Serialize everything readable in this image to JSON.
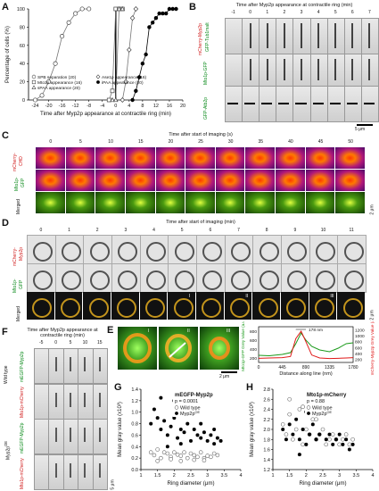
{
  "panel_labels": {
    "a": "A",
    "b": "B",
    "c": "C",
    "d": "D",
    "e": "E",
    "f": "F",
    "g": "G",
    "h": "H"
  },
  "panelA": {
    "chart_data": {
      "type": "line",
      "xlabel": "Time after Myp2p appearance at contractile ring (min)",
      "ylabel": "Percentage of cells (%)",
      "xlim": [
        -26,
        20
      ],
      "ylim": [
        0,
        100
      ],
      "xticks": [
        -24,
        -20,
        -16,
        -12,
        -8,
        -4,
        0,
        4,
        8,
        12,
        16,
        20
      ],
      "yticks": [
        0,
        20,
        40,
        60,
        80,
        100
      ],
      "series": [
        {
          "name": "SPB separation (20)",
          "marker": "open-circle",
          "x": [
            -24,
            -22,
            -20,
            -18,
            -16,
            -14,
            -12,
            -10,
            -8
          ],
          "y": [
            0,
            5,
            20,
            40,
            70,
            85,
            95,
            100,
            100
          ]
        },
        {
          "name": "Mto1p appearance (16)",
          "marker": "open-square",
          "x": [
            -2,
            -1,
            0,
            1,
            2
          ],
          "y": [
            0,
            10,
            100,
            100,
            100
          ]
        },
        {
          "name": "sPAA appearance (20)",
          "marker": "open-triangle",
          "x": [
            -1,
            0,
            1,
            2
          ],
          "y": [
            0,
            0,
            100,
            100
          ]
        },
        {
          "name": "Ase1p appearance (16)",
          "marker": "open-diamond",
          "x": [
            2,
            3,
            4,
            5,
            6
          ],
          "y": [
            0,
            20,
            55,
            90,
            100
          ]
        },
        {
          "name": "iPAA appearance (20)",
          "marker": "filled-circle",
          "x": [
            5,
            6,
            7,
            8,
            9,
            10,
            11,
            12,
            13,
            14,
            15,
            16,
            17,
            18
          ],
          "y": [
            0,
            10,
            25,
            40,
            50,
            80,
            85,
            90,
            95,
            95,
            95,
            100,
            100,
            100
          ]
        }
      ]
    }
  },
  "panelB": {
    "top_label": "Time after Myp2p appearance at contractile ring (min)",
    "times": [
      "-1",
      "0",
      "1",
      "2",
      "3",
      "4",
      "5",
      "6",
      "7"
    ],
    "rows": [
      "mCherry-Myp2p GFP-Tubulin",
      "Mto1p-GFP",
      "GFP-Atb2p"
    ],
    "row_labels_short": [
      "mCherry-\nMyp2p\nGFP-\nTub1malt",
      "Mto1p-\nGFP",
      "GFP-\nAtb2p"
    ],
    "scale": "5 μm"
  },
  "panelC": {
    "top_label": "Time after start of imaging (s)",
    "times": [
      "0",
      "5",
      "10",
      "15",
      "20",
      "25",
      "30",
      "35",
      "40",
      "45",
      "50"
    ],
    "rows": [
      "mCherry-CHD",
      "Mto1p-GFP",
      "Merged"
    ],
    "scale": "2 μm"
  },
  "panelD": {
    "top_label": "Time after start of imaging (min)",
    "times": [
      "0",
      "1",
      "2",
      "3",
      "4",
      "5",
      "6",
      "7",
      "8",
      "9",
      "10",
      "11"
    ],
    "rows": [
      "mCherry-Myp2p",
      "Mto1p-GFP",
      "Merged"
    ],
    "roman": [
      "I",
      "II",
      "III"
    ],
    "scale": "2 μm"
  },
  "panelE": {
    "roman": [
      "I",
      "II",
      "III"
    ],
    "scale": "2 μm",
    "annotation": "178 nm",
    "chart_data": {
      "type": "line",
      "xlabel": "Distance along line (nm)",
      "ylabel_left": "Mto1p-GFP Grey Value (a.u.)",
      "ylabel_right": "mCherry-Myp2p Grey Value (a.u.)",
      "xticks": [
        0,
        445,
        890,
        1335,
        1780
      ],
      "yticks_left": [
        200,
        400,
        600,
        800
      ],
      "yticks_right": [
        200,
        400,
        600,
        800,
        1000,
        1200
      ],
      "series": [
        {
          "name": "Mto1p-GFP",
          "color": "#1a9a1a",
          "x": [
            0,
            200,
            445,
            600,
            700,
            800,
            890,
            1000,
            1150,
            1335,
            1500,
            1650,
            1780
          ],
          "y": [
            260,
            250,
            280,
            320,
            520,
            760,
            600,
            460,
            380,
            340,
            420,
            520,
            540
          ]
        },
        {
          "name": "mCherry-Myp2p",
          "color": "#e01818",
          "x": [
            0,
            200,
            445,
            600,
            700,
            800,
            890,
            1000,
            1150,
            1335,
            1500,
            1650,
            1780
          ],
          "y": [
            240,
            250,
            260,
            300,
            900,
            1150,
            800,
            350,
            250,
            230,
            240,
            250,
            260
          ]
        }
      ]
    }
  },
  "panelF": {
    "top_label": "Time after Myp2p appearance at contractile ring (min)",
    "times": [
      "-5",
      "0",
      "5",
      "10",
      "15"
    ],
    "rows": [
      "mEGFP-Myp2p",
      "Mto1p-mCherry",
      "mEGFP-Myp2p",
      "Mto1p-mCherry"
    ],
    "groups": [
      "Wild type",
      "Myp2p^OE"
    ],
    "scale": "5 μm"
  },
  "panelG": {
    "title": "mEGFP-Myp2p",
    "pvalue": "p = 0.0001",
    "chart_data": {
      "type": "scatter",
      "xlabel": "Ring diameter (μm)",
      "ylabel": "Mean gray value (x10³)",
      "xlim": [
        1,
        4
      ],
      "ylim": [
        0,
        1.4
      ],
      "xticks": [
        1,
        1.5,
        2,
        2.5,
        3,
        3.5,
        4
      ],
      "yticks": [
        0,
        0.2,
        0.4,
        0.6,
        0.8,
        1.0,
        1.2,
        1.4
      ],
      "series": [
        {
          "name": "Wild type",
          "marker": "open",
          "x": [
            1.3,
            1.4,
            1.5,
            1.6,
            1.7,
            1.8,
            1.9,
            2.0,
            2.1,
            2.2,
            2.3,
            2.4,
            2.5,
            2.6,
            2.7,
            2.8,
            2.9,
            3.0,
            3.1,
            3.2,
            3.3,
            1.5,
            1.9,
            2.2,
            2.6,
            2.9
          ],
          "y": [
            0.3,
            0.25,
            0.35,
            0.2,
            0.3,
            0.28,
            0.22,
            0.3,
            0.26,
            0.24,
            0.3,
            0.2,
            0.28,
            0.25,
            0.22,
            0.3,
            0.2,
            0.24,
            0.22,
            0.28,
            0.25,
            0.15,
            0.18,
            0.15,
            0.17,
            0.16
          ]
        },
        {
          "name": "Myp2p^OE",
          "marker": "filled",
          "x": [
            1.3,
            1.4,
            1.5,
            1.6,
            1.7,
            1.8,
            1.9,
            2.0,
            2.1,
            2.2,
            2.3,
            2.4,
            2.5,
            2.6,
            2.7,
            2.8,
            2.9,
            3.0,
            3.1,
            3.2,
            3.3,
            3.4,
            1.6,
            2.0,
            2.4,
            2.8,
            3.2,
            1.8,
            2.2
          ],
          "y": [
            0.8,
            1.05,
            0.9,
            0.7,
            0.85,
            0.6,
            0.75,
            0.9,
            0.55,
            0.7,
            0.65,
            0.8,
            0.5,
            0.7,
            0.6,
            0.55,
            0.65,
            0.5,
            0.6,
            0.45,
            0.55,
            0.5,
            1.25,
            1.2,
            0.95,
            0.8,
            0.7,
            0.4,
            0.45
          ]
        }
      ]
    }
  },
  "panelH": {
    "title": "Mto1p-mCherry",
    "pvalue": "p = 0.88",
    "chart_data": {
      "type": "scatter",
      "xlabel": "Ring diameter (μm)",
      "ylabel": "Mean gray value (x10³)",
      "xlim": [
        1,
        4
      ],
      "ylim": [
        1.2,
        2.8
      ],
      "xticks": [
        1,
        1.5,
        2,
        2.5,
        3,
        3.5,
        4
      ],
      "yticks": [
        1.2,
        1.4,
        1.6,
        1.8,
        2.0,
        2.2,
        2.4,
        2.6,
        2.8
      ],
      "series": [
        {
          "name": "Wild type",
          "marker": "open",
          "x": [
            1.3,
            1.4,
            1.5,
            1.6,
            1.7,
            1.8,
            1.9,
            2.0,
            2.1,
            2.2,
            2.3,
            2.4,
            2.5,
            2.6,
            2.7,
            2.8,
            2.9,
            3.0,
            3.1,
            3.2,
            3.3,
            3.4,
            1.5,
            1.9,
            2.3
          ],
          "y": [
            2.1,
            1.9,
            2.3,
            1.8,
            2.0,
            2.4,
            1.7,
            2.0,
            1.9,
            2.2,
            1.8,
            1.9,
            2.0,
            1.7,
            1.8,
            1.9,
            1.8,
            1.7,
            1.8,
            1.9,
            1.7,
            1.8,
            2.6,
            2.45,
            2.2
          ]
        },
        {
          "name": "Myp2p^OE",
          "marker": "filled",
          "x": [
            1.3,
            1.4,
            1.5,
            1.6,
            1.7,
            1.8,
            1.9,
            2.0,
            2.1,
            2.2,
            2.3,
            2.4,
            2.5,
            2.6,
            2.7,
            2.8,
            2.9,
            3.0,
            3.1,
            3.2,
            3.3,
            3.4,
            2.5,
            2.0,
            1.8
          ],
          "y": [
            2.0,
            1.8,
            2.1,
            1.9,
            2.2,
            1.8,
            2.0,
            1.7,
            1.9,
            2.1,
            1.8,
            1.9,
            2.6,
            1.8,
            1.9,
            1.7,
            1.8,
            1.9,
            1.7,
            1.8,
            1.6,
            1.7,
            2.55,
            2.35,
            1.5
          ]
        }
      ]
    }
  }
}
